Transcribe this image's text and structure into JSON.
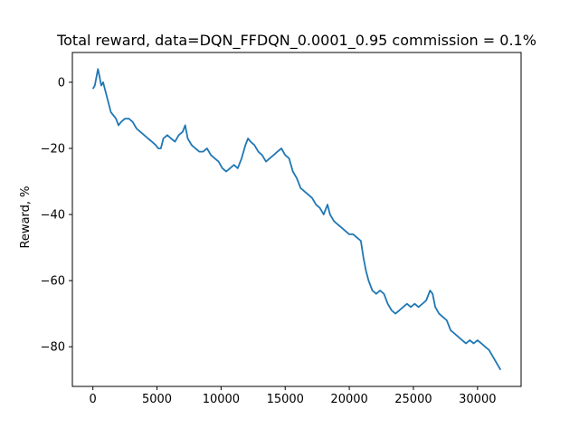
{
  "chart_data": {
    "type": "line",
    "title": "Total reward, data=DQN_FFDQN_0.0001_0.95 commission = 0.1%",
    "xlabel": "",
    "ylabel": "Reward, %",
    "xlim": [
      -1600,
      33400
    ],
    "ylim": [
      -92,
      9
    ],
    "xticks": [
      0,
      5000,
      10000,
      15000,
      20000,
      25000,
      30000
    ],
    "xtick_labels": [
      "0",
      "5000",
      "10000",
      "15000",
      "20000",
      "25000",
      "30000"
    ],
    "yticks": [
      0,
      -20,
      -40,
      -60,
      -80
    ],
    "ytick_labels": [
      "0",
      "−20",
      "−40",
      "−60",
      "−80"
    ],
    "grid": false,
    "legend": "none",
    "series": [
      {
        "color": "#1f77b4",
        "x": [
          0,
          150,
          300,
          400,
          500,
          650,
          800,
          1000,
          1200,
          1400,
          1600,
          1800,
          2000,
          2200,
          2500,
          2800,
          3100,
          3400,
          3700,
          4000,
          4300,
          4600,
          4900,
          5100,
          5300,
          5500,
          5800,
          6100,
          6400,
          6700,
          7000,
          7200,
          7400,
          7700,
          8000,
          8300,
          8600,
          8900,
          9200,
          9500,
          9800,
          10100,
          10400,
          10700,
          11000,
          11300,
          11600,
          11900,
          12100,
          12300,
          12600,
          12900,
          13200,
          13500,
          13800,
          14100,
          14400,
          14700,
          15000,
          15300,
          15600,
          15900,
          16200,
          16500,
          16800,
          17100,
          17400,
          17700,
          18000,
          18300,
          18500,
          18800,
          19100,
          19400,
          19700,
          20000,
          20300,
          20600,
          20900,
          21100,
          21300,
          21500,
          21800,
          22100,
          22400,
          22700,
          23000,
          23300,
          23600,
          23900,
          24200,
          24500,
          24800,
          25100,
          25400,
          25700,
          26000,
          26300,
          26500,
          26700,
          27000,
          27300,
          27600,
          27900,
          28200,
          28500,
          28800,
          29100,
          29400,
          29700,
          30000,
          30300,
          30600,
          30900,
          31200,
          31500,
          31800
        ],
        "values": [
          -2,
          -1,
          2,
          4,
          2,
          -1,
          0,
          -3,
          -6,
          -9,
          -10,
          -11,
          -13,
          -12,
          -11,
          -11,
          -12,
          -14,
          -15,
          -16,
          -17,
          -18,
          -19,
          -20,
          -20,
          -17,
          -16,
          -17,
          -18,
          -16,
          -15,
          -13,
          -17,
          -19,
          -20,
          -21,
          -21,
          -20,
          -22,
          -23,
          -24,
          -26,
          -27,
          -26,
          -25,
          -26,
          -23,
          -19,
          -17,
          -18,
          -19,
          -21,
          -22,
          -24,
          -23,
          -22,
          -21,
          -20,
          -22,
          -23,
          -27,
          -29,
          -32,
          -33,
          -34,
          -35,
          -37,
          -38,
          -40,
          -37,
          -40,
          -42,
          -43,
          -44,
          -45,
          -46,
          -46,
          -47,
          -48,
          -53,
          -57,
          -60,
          -63,
          -64,
          -63,
          -64,
          -67,
          -69,
          -70,
          -69,
          -68,
          -67,
          -68,
          -67,
          -68,
          -67,
          -66,
          -63,
          -64,
          -68,
          -70,
          -71,
          -72,
          -75,
          -76,
          -77,
          -78,
          -79,
          -78,
          -79,
          -78,
          -79,
          -80,
          -81,
          -83,
          -85,
          -87
        ]
      }
    ]
  }
}
